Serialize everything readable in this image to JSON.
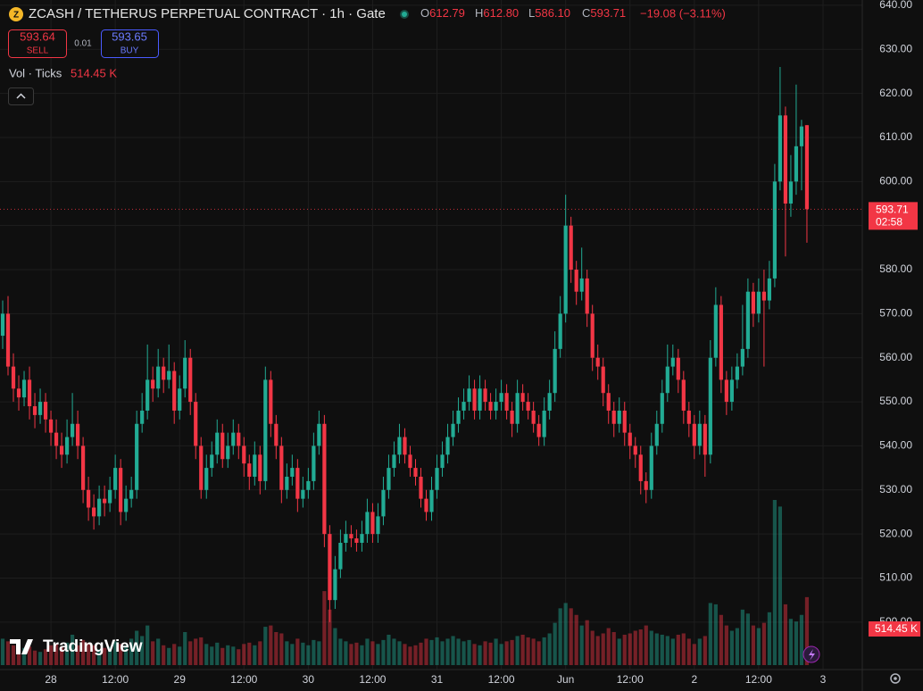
{
  "header": {
    "symbol": "ZCASH / TETHERUS PERPETUAL CONTRACT · 1h · Gate",
    "coin_icon": "Z",
    "ohlc": [
      {
        "label": "O",
        "value": "612.79"
      },
      {
        "label": "H",
        "value": "612.80"
      },
      {
        "label": "L",
        "value": "586.10"
      },
      {
        "label": "C",
        "value": "593.71"
      }
    ],
    "change": "−19.08 (−3.11%)",
    "sell": {
      "price": "593.64",
      "label": "SELL"
    },
    "spread": "0.01",
    "buy": {
      "price": "593.65",
      "label": "BUY"
    },
    "volume_legend": {
      "label": "Vol · Ticks",
      "value": "514.45 K"
    }
  },
  "price_tag": {
    "price": "593.71",
    "countdown": "02:58"
  },
  "volume_tag": "514.45 K",
  "watermark": "TradingView",
  "chart_data": {
    "type": "candlestick",
    "colors": {
      "up": "#22ab94",
      "down": "#f23645"
    },
    "ylim": [
      487.2,
      641.2
    ],
    "yticks": [
      {
        "value": 500,
        "label": "500.00"
      },
      {
        "value": 510,
        "label": "510.00"
      },
      {
        "value": 520,
        "label": "520.00"
      },
      {
        "value": 530,
        "label": "530.00"
      },
      {
        "value": 540,
        "label": "540.00"
      },
      {
        "value": 550,
        "label": "550.00"
      },
      {
        "value": 560,
        "label": "560.00"
      },
      {
        "value": 570,
        "label": "570.00"
      },
      {
        "value": 580,
        "label": "580.00"
      },
      {
        "value": 590,
        "label": "590.00"
      },
      {
        "value": 600,
        "label": "600.00"
      },
      {
        "value": 610,
        "label": "610.00"
      },
      {
        "value": 620,
        "label": "620.00"
      },
      {
        "value": 630,
        "label": "630.00"
      },
      {
        "value": 640,
        "label": "640.00"
      }
    ],
    "xlim": [
      -0.5,
      160.33
    ],
    "xticks": [
      {
        "value": 9,
        "label": "28"
      },
      {
        "value": 21,
        "label": "12:00"
      },
      {
        "value": 33,
        "label": "29"
      },
      {
        "value": 45,
        "label": "12:00"
      },
      {
        "value": 57,
        "label": "30"
      },
      {
        "value": 69,
        "label": "12:00"
      },
      {
        "value": 81,
        "label": "31"
      },
      {
        "value": 93,
        "label": "12:00"
      },
      {
        "value": 105,
        "label": "Jun"
      },
      {
        "value": 117,
        "label": "12:00"
      },
      {
        "value": 129,
        "label": "2"
      },
      {
        "value": 141,
        "label": "12:00"
      },
      {
        "value": 153,
        "label": "3"
      }
    ],
    "grid": true,
    "last_price": 593.71,
    "open": [
      565,
      570,
      558,
      553,
      551,
      555,
      549,
      547,
      550,
      546,
      543,
      540,
      538,
      542,
      545,
      540,
      530,
      526,
      524,
      528,
      527,
      530,
      535,
      525,
      528,
      530,
      545,
      548,
      555,
      553,
      558,
      555,
      557,
      548,
      553,
      560,
      550,
      540,
      530,
      535,
      538,
      543,
      537,
      540,
      543,
      540,
      536,
      533,
      538,
      532,
      555,
      545,
      540,
      530,
      533,
      535,
      528,
      530,
      532,
      540,
      545,
      520,
      505,
      512,
      518,
      520,
      519,
      518,
      520,
      525,
      520,
      524,
      530,
      535,
      538,
      542,
      538,
      535,
      533,
      528,
      525,
      530,
      535,
      538,
      542,
      545,
      548,
      550,
      553,
      548,
      553,
      550,
      548,
      550,
      552,
      548,
      545,
      552,
      550,
      548,
      545,
      542,
      548,
      552,
      562,
      570,
      590,
      580,
      575,
      578,
      570,
      560,
      558,
      552,
      548,
      545,
      548,
      543,
      540,
      538,
      532,
      530,
      540,
      545,
      552,
      558,
      560,
      555,
      548,
      545,
      540,
      545,
      538,
      560,
      572,
      555,
      550,
      555,
      558,
      562,
      575,
      570,
      575,
      573,
      578,
      600,
      615,
      595,
      600,
      608,
      612.79
    ],
    "high": [
      573,
      574,
      561,
      556,
      557,
      558,
      552,
      553,
      552,
      548,
      546,
      543,
      546,
      552,
      548,
      542,
      533,
      529,
      531,
      531,
      533,
      538,
      537,
      531,
      533,
      548,
      552,
      563,
      558,
      562,
      560,
      563,
      559,
      556,
      564,
      562,
      552,
      542,
      538,
      541,
      546,
      545,
      543,
      546,
      545,
      542,
      538,
      541,
      540,
      558,
      557,
      547,
      542,
      536,
      538,
      537,
      533,
      535,
      543,
      548,
      547,
      522,
      515,
      521,
      523,
      522,
      521,
      523,
      528,
      527,
      527,
      533,
      538,
      541,
      545,
      544,
      540,
      537,
      535,
      530,
      533,
      538,
      541,
      545,
      548,
      551,
      553,
      556,
      555,
      556,
      555,
      552,
      553,
      555,
      554,
      550,
      555,
      554,
      552,
      550,
      547,
      551,
      555,
      566,
      574,
      597,
      592,
      582,
      585,
      580,
      572,
      563,
      560,
      554,
      550,
      551,
      550,
      545,
      542,
      540,
      534,
      543,
      548,
      555,
      563,
      563,
      562,
      557,
      550,
      547,
      548,
      547,
      564,
      576,
      574,
      557,
      558,
      561,
      572,
      578,
      577,
      578,
      580,
      582,
      604,
      626,
      617,
      606,
      622,
      614,
      612.8
    ],
    "low": [
      562,
      556,
      550,
      548,
      549,
      546,
      544,
      545,
      543,
      540,
      537,
      535,
      536,
      540,
      537,
      527,
      523,
      521,
      522,
      524,
      525,
      528,
      522,
      523,
      526,
      528,
      543,
      546,
      550,
      551,
      552,
      553,
      545,
      546,
      551,
      547,
      537,
      528,
      528,
      533,
      536,
      535,
      535,
      538,
      537,
      533,
      530,
      531,
      529,
      530,
      542,
      537,
      527,
      528,
      531,
      525,
      526,
      528,
      530,
      538,
      517,
      500,
      503,
      510,
      516,
      517,
      516,
      516,
      518,
      518,
      518,
      522,
      528,
      533,
      536,
      536,
      533,
      531,
      526,
      523,
      523,
      528,
      533,
      536,
      540,
      543,
      546,
      548,
      546,
      546,
      548,
      546,
      546,
      548,
      546,
      542,
      543,
      548,
      546,
      543,
      540,
      540,
      546,
      550,
      560,
      568,
      577,
      572,
      573,
      567,
      557,
      555,
      549,
      545,
      542,
      543,
      540,
      537,
      535,
      529,
      527,
      528,
      538,
      543,
      550,
      556,
      552,
      545,
      542,
      537,
      538,
      533,
      536,
      558,
      552,
      547,
      548,
      553,
      556,
      560,
      567,
      568,
      558,
      571,
      576,
      598,
      583,
      592,
      597,
      598,
      586.1
    ],
    "close": [
      570,
      558,
      553,
      551,
      555,
      549,
      547,
      550,
      546,
      543,
      540,
      538,
      542,
      545,
      540,
      530,
      526,
      524,
      528,
      527,
      530,
      535,
      525,
      528,
      530,
      545,
      548,
      555,
      553,
      558,
      555,
      557,
      548,
      553,
      560,
      550,
      540,
      530,
      535,
      538,
      543,
      537,
      540,
      543,
      540,
      536,
      533,
      538,
      532,
      555,
      545,
      540,
      530,
      533,
      535,
      528,
      530,
      532,
      540,
      545,
      520,
      505,
      512,
      518,
      520,
      519,
      518,
      520,
      525,
      520,
      524,
      530,
      535,
      538,
      542,
      538,
      535,
      533,
      528,
      525,
      530,
      535,
      538,
      542,
      545,
      548,
      550,
      553,
      548,
      553,
      550,
      548,
      550,
      552,
      548,
      545,
      552,
      550,
      548,
      545,
      542,
      548,
      552,
      562,
      570,
      590,
      580,
      575,
      578,
      570,
      560,
      558,
      552,
      548,
      545,
      548,
      543,
      540,
      538,
      532,
      530,
      540,
      545,
      552,
      558,
      560,
      555,
      548,
      545,
      540,
      545,
      538,
      560,
      572,
      555,
      550,
      555,
      558,
      562,
      575,
      570,
      575,
      573,
      578,
      600,
      615,
      595,
      600,
      608,
      612.5,
      593.71
    ],
    "volume": [
      200,
      180,
      150,
      120,
      130,
      140,
      110,
      100,
      120,
      150,
      160,
      140,
      170,
      230,
      150,
      190,
      170,
      150,
      120,
      130,
      140,
      180,
      160,
      150,
      200,
      260,
      220,
      300,
      180,
      200,
      150,
      130,
      160,
      140,
      250,
      180,
      200,
      210,
      160,
      140,
      170,
      130,
      150,
      140,
      120,
      160,
      170,
      150,
      180,
      290,
      300,
      250,
      240,
      180,
      160,
      200,
      170,
      150,
      190,
      180,
      560,
      420,
      280,
      200,
      180,
      160,
      170,
      150,
      200,
      180,
      160,
      190,
      230,
      200,
      180,
      160,
      140,
      150,
      170,
      200,
      190,
      210,
      180,
      200,
      220,
      200,
      180,
      190,
      160,
      150,
      180,
      170,
      200,
      160,
      180,
      190,
      220,
      230,
      210,
      200,
      180,
      210,
      240,
      320,
      430,
      470,
      430,
      380,
      300,
      340,
      260,
      220,
      240,
      280,
      250,
      200,
      230,
      240,
      260,
      270,
      300,
      260,
      240,
      230,
      220,
      200,
      230,
      240,
      200,
      160,
      200,
      220,
      470,
      460,
      380,
      300,
      260,
      280,
      420,
      390,
      300,
      280,
      320,
      400,
      1250,
      1200,
      460,
      350,
      330,
      380,
      514.45
    ]
  }
}
